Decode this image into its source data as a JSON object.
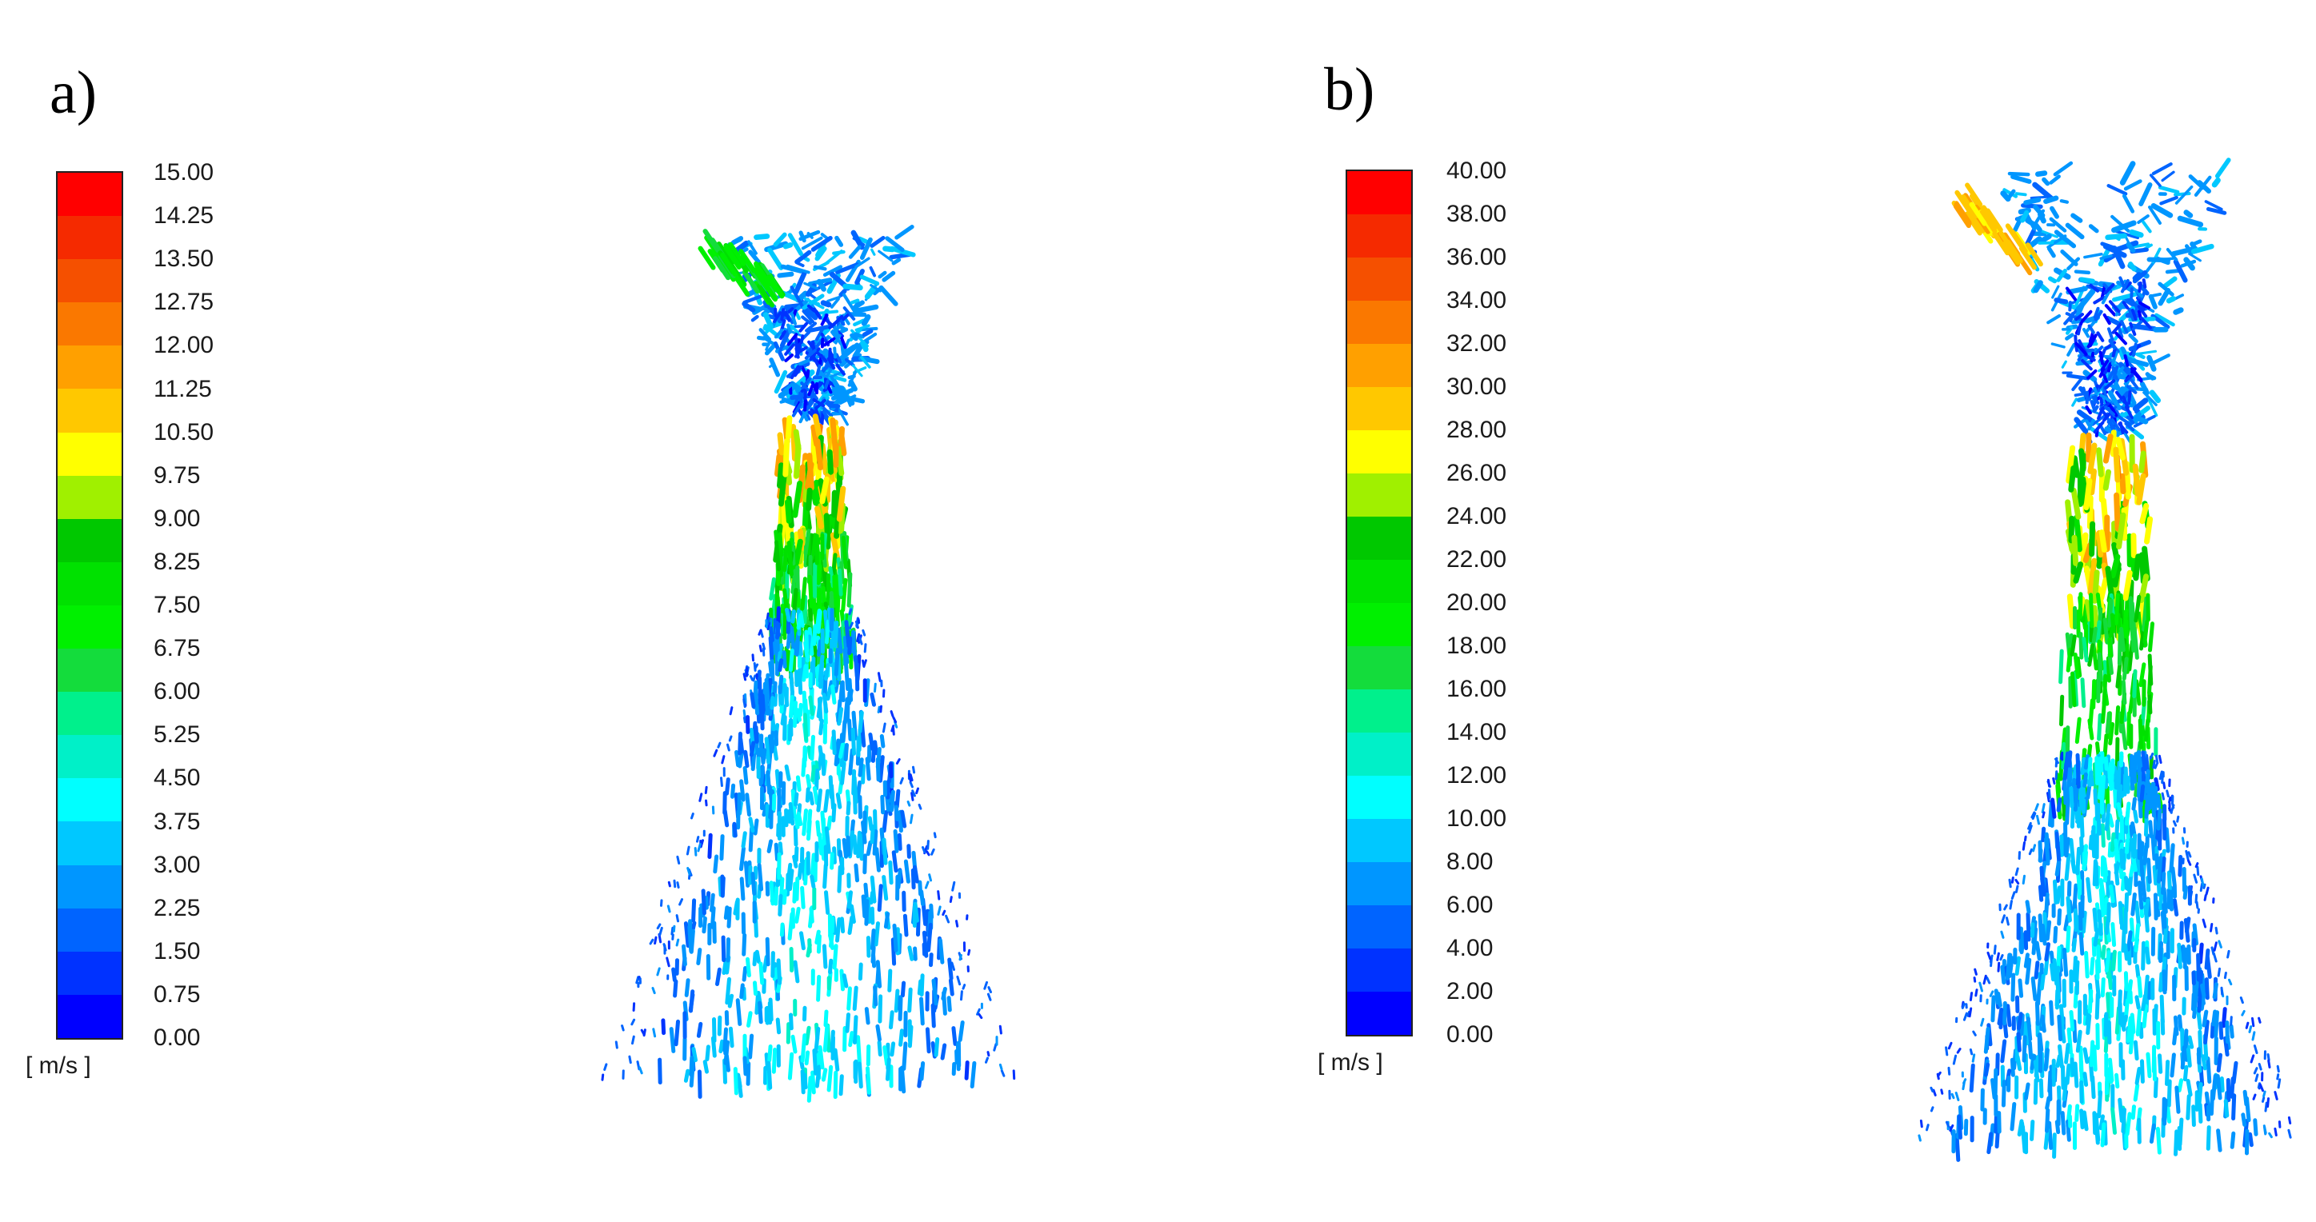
{
  "panels": [
    {
      "label": "a)",
      "unit": "[ m/s ]",
      "ticks": [
        "15.00",
        "14.25",
        "13.50",
        "12.75",
        "12.00",
        "11.25",
        "10.50",
        "9.75",
        "9.00",
        "8.25",
        "7.50",
        "6.75",
        "6.00",
        "5.25",
        "4.50",
        "3.75",
        "3.00",
        "2.25",
        "1.50",
        "0.75",
        "0.00"
      ]
    },
    {
      "label": "b)",
      "unit": "[ m/s ]",
      "ticks": [
        "40.00",
        "38.00",
        "36.00",
        "34.00",
        "32.00",
        "30.00",
        "28.00",
        "26.00",
        "24.00",
        "22.00",
        "20.00",
        "18.00",
        "16.00",
        "14.00",
        "12.00",
        "10.00",
        "8.00",
        "6.00",
        "4.00",
        "2.00",
        "0.00"
      ]
    }
  ],
  "colormap": [
    "#ff0000",
    "#f52a00",
    "#f55000",
    "#fa7800",
    "#ffa000",
    "#ffc800",
    "#ffff00",
    "#a0f000",
    "#00c800",
    "#00e100",
    "#00f000",
    "#14dc3c",
    "#00f08c",
    "#00f0c8",
    "#00ffff",
    "#00c8ff",
    "#0096ff",
    "#0064ff",
    "#0032ff",
    "#0000ff"
  ]
}
